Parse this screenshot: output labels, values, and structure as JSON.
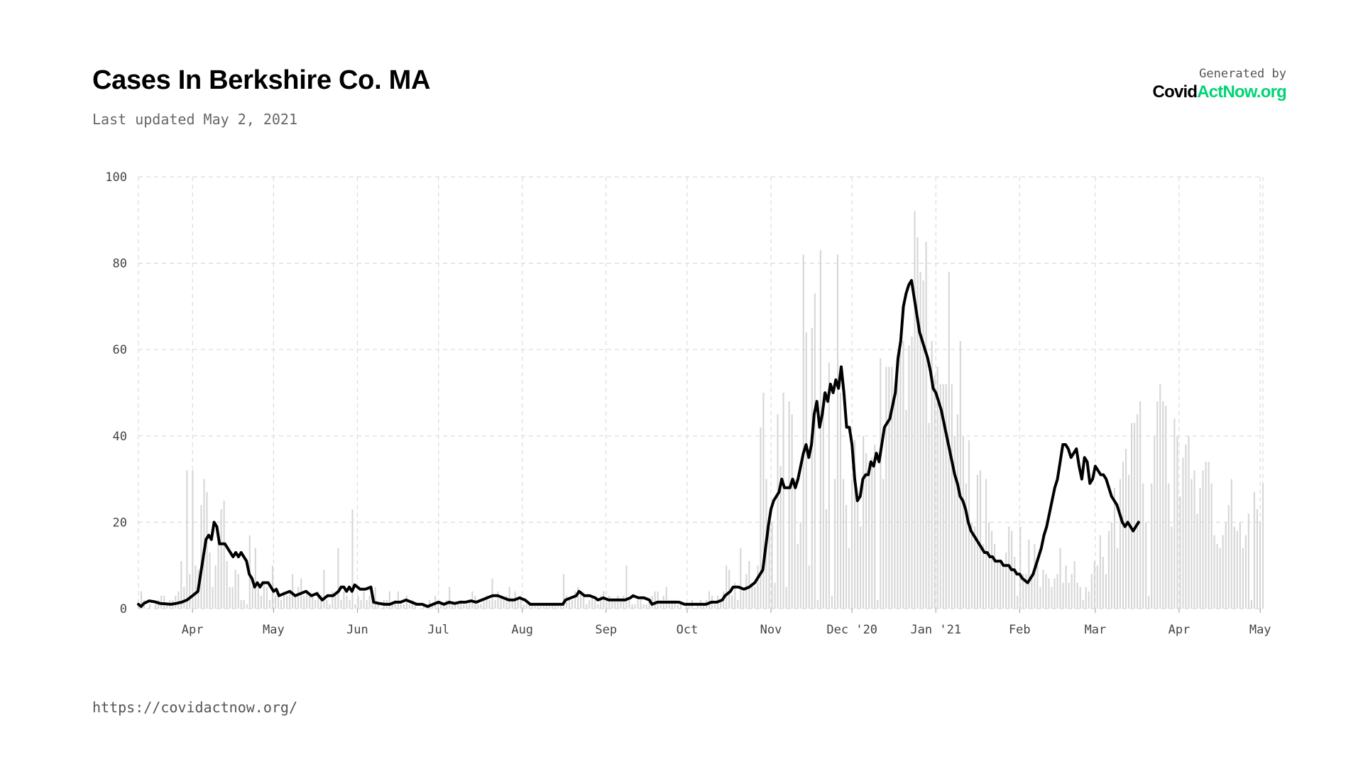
{
  "title": "Cases In Berkshire Co. MA",
  "subtitle": "Last updated May 2, 2021",
  "brand": {
    "generated_by": "Generated by",
    "logo_part1": "Covid",
    "logo_part2": "ActNow.org",
    "accent_color": "#00d474"
  },
  "footer_url": "https://covidactnow.org/",
  "chart_data": {
    "type": "bar",
    "x_start": "2020-03-12",
    "x_end": "2021-05-02",
    "ylim": [
      0,
      100
    ],
    "y_ticks": [
      0,
      20,
      40,
      60,
      80,
      100
    ],
    "grid": true,
    "bar_color": "#d6d6d6",
    "line_color": "#000000",
    "x_ticks": [
      {
        "label": "Apr",
        "date": "2020-04-01"
      },
      {
        "label": "May",
        "date": "2020-05-01"
      },
      {
        "label": "Jun",
        "date": "2020-06-01"
      },
      {
        "label": "Jul",
        "date": "2020-07-01"
      },
      {
        "label": "Aug",
        "date": "2020-08-01"
      },
      {
        "label": "Sep",
        "date": "2020-09-01"
      },
      {
        "label": "Oct",
        "date": "2020-10-01"
      },
      {
        "label": "Nov",
        "date": "2020-11-01"
      },
      {
        "label": "Dec '20",
        "date": "2020-12-01"
      },
      {
        "label": "Jan '21",
        "date": "2021-01-01"
      },
      {
        "label": "Feb",
        "date": "2021-02-01"
      },
      {
        "label": "Mar",
        "date": "2021-03-01"
      },
      {
        "label": "Apr",
        "date": "2021-04-01"
      },
      {
        "label": "May",
        "date": "2021-05-01"
      }
    ],
    "daily_cases": [
      1,
      4,
      2,
      0,
      1,
      0,
      1,
      2,
      3,
      3,
      1,
      2,
      2,
      3,
      4,
      11,
      5,
      32,
      8,
      32,
      10,
      9,
      24,
      30,
      27,
      13,
      5,
      10,
      16,
      23,
      25,
      11,
      5,
      5,
      9,
      8,
      2,
      2,
      1,
      17,
      5,
      14,
      6,
      3,
      6,
      5,
      2,
      10,
      3,
      3,
      2,
      4,
      3,
      4,
      8,
      3,
      5,
      7,
      3,
      4,
      3,
      3,
      2,
      4,
      3,
      9,
      2,
      1,
      4,
      3,
      14,
      2,
      4,
      3,
      2,
      23,
      1,
      3,
      2,
      4,
      2,
      3,
      2,
      5,
      1,
      0,
      2,
      2,
      4,
      1,
      2,
      4,
      1,
      1,
      3,
      1,
      2,
      1,
      0,
      0,
      1,
      1,
      2,
      1,
      3,
      1,
      1,
      1,
      2,
      5,
      1,
      1,
      1,
      2,
      1,
      1,
      2,
      4,
      3,
      1,
      1,
      2,
      3,
      2,
      7,
      2,
      4,
      3,
      2,
      3,
      5,
      2,
      4,
      2,
      3,
      1,
      1,
      1,
      1,
      1,
      1,
      1,
      1,
      1,
      1,
      1,
      1,
      1,
      1,
      8,
      3,
      2,
      2,
      4,
      5,
      4,
      3,
      1,
      2,
      3,
      2,
      1,
      3,
      4,
      2,
      3,
      2,
      2,
      3,
      2,
      3,
      10,
      2,
      1,
      1,
      2,
      2,
      1,
      1,
      2,
      3,
      4,
      4,
      2,
      3,
      5,
      2,
      2,
      2,
      1,
      1,
      0,
      1,
      1,
      2,
      0,
      1,
      2,
      1,
      2,
      4,
      3,
      1,
      3,
      2,
      4,
      10,
      9,
      3,
      6,
      2,
      14,
      4,
      8,
      11,
      6,
      5,
      10,
      42,
      50,
      30,
      19,
      20,
      6,
      45,
      33,
      50,
      5,
      48,
      45,
      30,
      15,
      20,
      82,
      64,
      10,
      65,
      73,
      2,
      83,
      50,
      23,
      57,
      3,
      30,
      82,
      50,
      30,
      24,
      14,
      30,
      39,
      25,
      19,
      40,
      36,
      34,
      35,
      38,
      2,
      58,
      30,
      56,
      56,
      56,
      48,
      58,
      60,
      62,
      46,
      61,
      63,
      92,
      86,
      78,
      76,
      85,
      43,
      62,
      54,
      56,
      52,
      52,
      52,
      78,
      52,
      40,
      45,
      62,
      40,
      29,
      39,
      20,
      19,
      31,
      32,
      15,
      30,
      20,
      18,
      15,
      11,
      11,
      10,
      13,
      19,
      18,
      12,
      3,
      19,
      8,
      8,
      16,
      7,
      15,
      11,
      5,
      9,
      8,
      7,
      5,
      7,
      8,
      14,
      6,
      10,
      6,
      8,
      11,
      6,
      5,
      2,
      5,
      4,
      8,
      11,
      10,
      17,
      12,
      8,
      18,
      20,
      28,
      14,
      30,
      34,
      37,
      31,
      43,
      43,
      45,
      48,
      29,
      20,
      3,
      29,
      40,
      48,
      52,
      48,
      47,
      29,
      19,
      44,
      40,
      26,
      35,
      38,
      40,
      30,
      32,
      22,
      28,
      32,
      34,
      34,
      29,
      17,
      15,
      14,
      17,
      20,
      24,
      30,
      19,
      18,
      20,
      14,
      17,
      22,
      2,
      27,
      23,
      20,
      29
    ],
    "line_points": [
      [
        0,
        1
      ],
      [
        1,
        0.5
      ],
      [
        2,
        1.2
      ],
      [
        4,
        1.8
      ],
      [
        6,
        1.6
      ],
      [
        8,
        1.2
      ],
      [
        10,
        1.1
      ],
      [
        12,
        1
      ],
      [
        14,
        1.2
      ],
      [
        16,
        1.5
      ],
      [
        18,
        2
      ],
      [
        20,
        3
      ],
      [
        22,
        4
      ],
      [
        23,
        8
      ],
      [
        24,
        12
      ],
      [
        25,
        16
      ],
      [
        26,
        17
      ],
      [
        27,
        16
      ],
      [
        28,
        20
      ],
      [
        29,
        19
      ],
      [
        30,
        15
      ],
      [
        32,
        15
      ],
      [
        33,
        14
      ],
      [
        35,
        12
      ],
      [
        36,
        13
      ],
      [
        37,
        12
      ],
      [
        38,
        13
      ],
      [
        40,
        11
      ],
      [
        41,
        8
      ],
      [
        42,
        7
      ],
      [
        43,
        5
      ],
      [
        44,
        6
      ],
      [
        45,
        5
      ],
      [
        46,
        6
      ],
      [
        48,
        6
      ],
      [
        50,
        4
      ],
      [
        51,
        4.5
      ],
      [
        52,
        3
      ],
      [
        54,
        3.5
      ],
      [
        56,
        4
      ],
      [
        58,
        3
      ],
      [
        60,
        3.5
      ],
      [
        62,
        4
      ],
      [
        64,
        3
      ],
      [
        66,
        3.5
      ],
      [
        68,
        2
      ],
      [
        70,
        3
      ],
      [
        72,
        3
      ],
      [
        74,
        4
      ],
      [
        75,
        5
      ],
      [
        76,
        5
      ],
      [
        77,
        4
      ],
      [
        78,
        5
      ],
      [
        79,
        4
      ],
      [
        80,
        5.5
      ],
      [
        81,
        5
      ],
      [
        82,
        4.5
      ],
      [
        84,
        4.5
      ],
      [
        86,
        5
      ],
      [
        87,
        1.5
      ],
      [
        89,
        1.2
      ],
      [
        91,
        1
      ],
      [
        93,
        1
      ],
      [
        95,
        1.5
      ],
      [
        97,
        1.5
      ],
      [
        99,
        2
      ],
      [
        101,
        1.5
      ],
      [
        103,
        1
      ],
      [
        105,
        1
      ],
      [
        107,
        0.5
      ],
      [
        109,
        1
      ],
      [
        111,
        1.5
      ],
      [
        113,
        1
      ],
      [
        115,
        1.5
      ],
      [
        117,
        1.2
      ],
      [
        119,
        1.5
      ],
      [
        121,
        1.5
      ],
      [
        123,
        1.8
      ],
      [
        125,
        1.5
      ],
      [
        127,
        2
      ],
      [
        129,
        2.5
      ],
      [
        131,
        3
      ],
      [
        133,
        3
      ],
      [
        135,
        2.5
      ],
      [
        137,
        2
      ],
      [
        139,
        2
      ],
      [
        141,
        2.5
      ],
      [
        143,
        2
      ],
      [
        145,
        1
      ],
      [
        147,
        1
      ],
      [
        149,
        1
      ],
      [
        151,
        1
      ],
      [
        153,
        1
      ],
      [
        155,
        1
      ],
      [
        157,
        1
      ],
      [
        158,
        2
      ],
      [
        160,
        2.5
      ],
      [
        162,
        3
      ],
      [
        163,
        4
      ],
      [
        164,
        3.5
      ],
      [
        165,
        3
      ],
      [
        167,
        3
      ],
      [
        169,
        2.5
      ],
      [
        170,
        2
      ],
      [
        172,
        2.5
      ],
      [
        174,
        2
      ],
      [
        176,
        2
      ],
      [
        178,
        2
      ],
      [
        180,
        2
      ],
      [
        182,
        2.5
      ],
      [
        183,
        3
      ],
      [
        185,
        2.5
      ],
      [
        187,
        2.5
      ],
      [
        189,
        2
      ],
      [
        190,
        1
      ],
      [
        192,
        1.5
      ],
      [
        194,
        1.5
      ],
      [
        196,
        1.5
      ],
      [
        198,
        1.5
      ],
      [
        200,
        1.5
      ],
      [
        202,
        1
      ],
      [
        204,
        1
      ],
      [
        206,
        1
      ],
      [
        208,
        1
      ],
      [
        210,
        1
      ],
      [
        212,
        1.5
      ],
      [
        214,
        1.5
      ],
      [
        216,
        2
      ],
      [
        217,
        3
      ],
      [
        219,
        4
      ],
      [
        220,
        5
      ],
      [
        222,
        5
      ],
      [
        224,
        4.5
      ],
      [
        226,
        5
      ],
      [
        228,
        6
      ],
      [
        229,
        7
      ],
      [
        230,
        8
      ],
      [
        231,
        9
      ],
      [
        232,
        14
      ],
      [
        233,
        19
      ],
      [
        234,
        23
      ],
      [
        235,
        25
      ],
      [
        236,
        26
      ],
      [
        237,
        27
      ],
      [
        238,
        30
      ],
      [
        239,
        28
      ],
      [
        241,
        28
      ],
      [
        242,
        30
      ],
      [
        243,
        28
      ],
      [
        244,
        30
      ],
      [
        245,
        33
      ],
      [
        246,
        36
      ],
      [
        247,
        38
      ],
      [
        248,
        35
      ],
      [
        249,
        38
      ],
      [
        250,
        45
      ],
      [
        251,
        48
      ],
      [
        252,
        42
      ],
      [
        253,
        45
      ],
      [
        254,
        50
      ],
      [
        255,
        48
      ],
      [
        256,
        52
      ],
      [
        257,
        50
      ],
      [
        258,
        53
      ],
      [
        259,
        51
      ],
      [
        260,
        56
      ],
      [
        261,
        50
      ],
      [
        262,
        42
      ],
      [
        263,
        42
      ],
      [
        264,
        38
      ],
      [
        265,
        30
      ],
      [
        266,
        25
      ],
      [
        267,
        26
      ],
      [
        268,
        30
      ],
      [
        269,
        31
      ],
      [
        270,
        31
      ],
      [
        271,
        34
      ],
      [
        272,
        33
      ],
      [
        273,
        36
      ],
      [
        274,
        34
      ],
      [
        275,
        38
      ],
      [
        276,
        42
      ],
      [
        277,
        43
      ],
      [
        278,
        44
      ],
      [
        279,
        47
      ],
      [
        280,
        50
      ],
      [
        281,
        58
      ],
      [
        282,
        62
      ],
      [
        283,
        70
      ],
      [
        284,
        73
      ],
      [
        285,
        75
      ],
      [
        286,
        76
      ],
      [
        287,
        72
      ],
      [
        288,
        68
      ],
      [
        289,
        64
      ],
      [
        290,
        62
      ],
      [
        291,
        60
      ],
      [
        292,
        58
      ],
      [
        293,
        55
      ],
      [
        294,
        51
      ],
      [
        295,
        50
      ],
      [
        296,
        48
      ],
      [
        297,
        46
      ],
      [
        298,
        43
      ],
      [
        299,
        40
      ],
      [
        300,
        37
      ],
      [
        301,
        34
      ],
      [
        302,
        31
      ],
      [
        303,
        29
      ],
      [
        304,
        26
      ],
      [
        305,
        25
      ],
      [
        306,
        23
      ],
      [
        307,
        20
      ],
      [
        308,
        18
      ],
      [
        309,
        17
      ],
      [
        310,
        16
      ],
      [
        311,
        15
      ],
      [
        312,
        14
      ],
      [
        313,
        13
      ],
      [
        314,
        13
      ],
      [
        315,
        12
      ],
      [
        316,
        12
      ],
      [
        317,
        11
      ],
      [
        318,
        11
      ],
      [
        319,
        11
      ],
      [
        320,
        10
      ],
      [
        321,
        10
      ],
      [
        322,
        10
      ],
      [
        323,
        9
      ],
      [
        324,
        9
      ],
      [
        325,
        8
      ],
      [
        326,
        8
      ],
      [
        327,
        7
      ],
      [
        328,
        6.5
      ],
      [
        329,
        6
      ],
      [
        330,
        7
      ],
      [
        331,
        8
      ],
      [
        332,
        10
      ],
      [
        333,
        12
      ],
      [
        334,
        14
      ],
      [
        335,
        17
      ],
      [
        336,
        19
      ],
      [
        337,
        22
      ],
      [
        338,
        25
      ],
      [
        339,
        28
      ],
      [
        340,
        30
      ],
      [
        341,
        34
      ],
      [
        342,
        38
      ],
      [
        343,
        38
      ],
      [
        344,
        37
      ],
      [
        345,
        35
      ],
      [
        346,
        36
      ],
      [
        347,
        37
      ],
      [
        348,
        33
      ],
      [
        349,
        30
      ],
      [
        350,
        35
      ],
      [
        351,
        34
      ],
      [
        352,
        29
      ],
      [
        353,
        30
      ],
      [
        354,
        33
      ],
      [
        355,
        32
      ],
      [
        356,
        31
      ],
      [
        357,
        31
      ],
      [
        358,
        30
      ],
      [
        359,
        28
      ],
      [
        360,
        26
      ],
      [
        361,
        25
      ],
      [
        362,
        24
      ],
      [
        363,
        22
      ],
      [
        364,
        20
      ],
      [
        365,
        19
      ],
      [
        366,
        20
      ],
      [
        367,
        19
      ],
      [
        368,
        18
      ],
      [
        369,
        19
      ],
      [
        370,
        20
      ]
    ]
  }
}
